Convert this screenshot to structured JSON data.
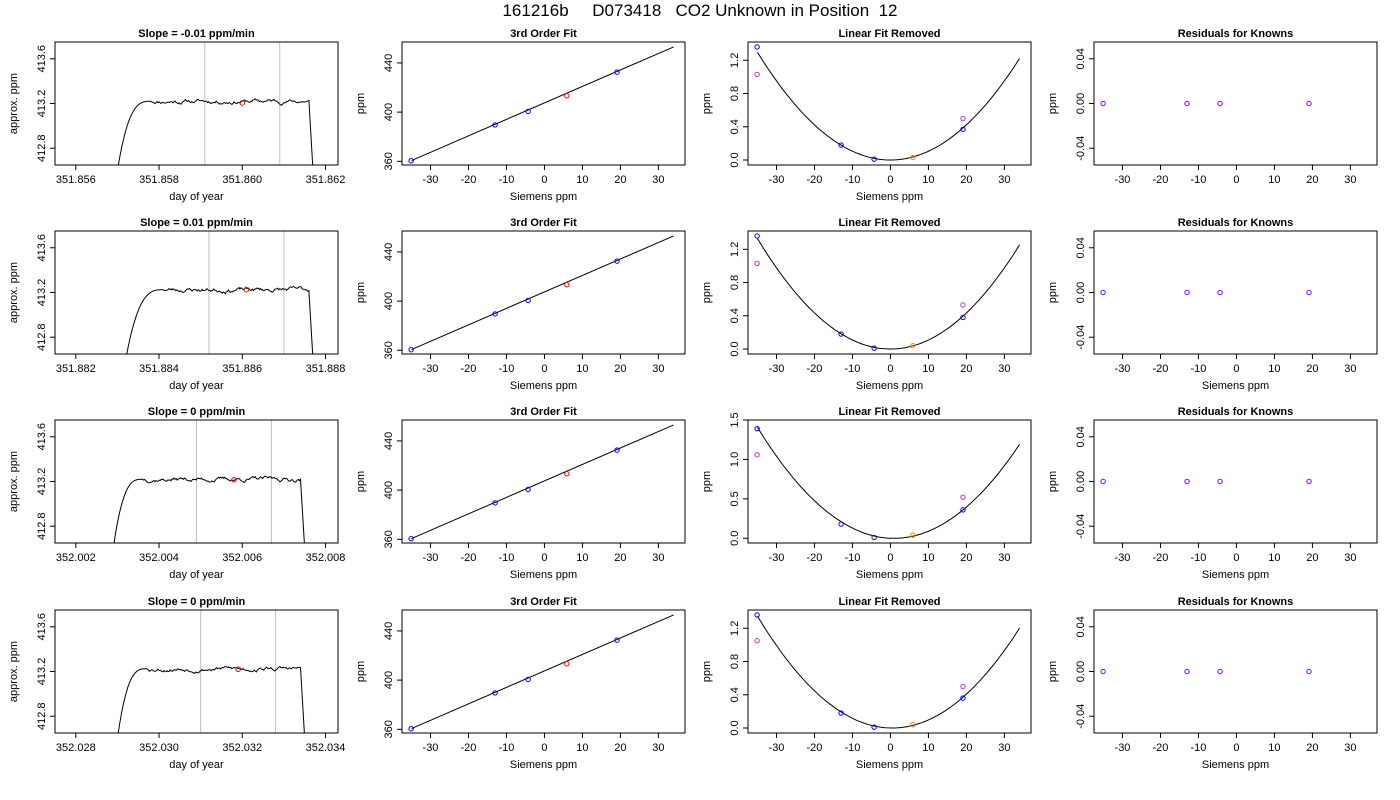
{
  "title": "161216b     D073418   CO2 Unknown in Position  12",
  "colors": {
    "known_point": "#0000ff",
    "unknown_point": "#ff0000",
    "linear_unknown_point": "#ff8000",
    "offset_point": "#cc33cc",
    "residual_point": "#7f00ff",
    "vline": "#bfbfbf",
    "line": "#000000"
  },
  "chart_data": [
    {
      "row": 0,
      "type": "line",
      "title": "Slope =  -0.01  ppm/min",
      "xlabel": "day of year",
      "ylabel": "approx. ppm",
      "xlim": [
        351.8555,
        351.8623
      ],
      "ylim": [
        412.65,
        413.75
      ],
      "xticks": [
        351.856,
        351.858,
        351.86,
        351.862
      ],
      "xtick_labels": [
        "351.856",
        "351.858",
        "351.860",
        "351.862"
      ],
      "yticks": [
        412.8,
        413.2,
        413.6
      ],
      "ytick_labels": [
        "412.8",
        "413.2",
        "413.6"
      ],
      "trace": {
        "x_start": 351.857,
        "x_plateau": 351.8578,
        "x_end": 351.8616,
        "x_drop": 351.8617,
        "level": 413.22,
        "base": 412.6,
        "noise": 0.025,
        "seed": 11
      },
      "vlines": [
        351.8591,
        351.8609
      ],
      "marker": {
        "x": 351.86,
        "y": 413.205
      }
    },
    {
      "row": 0,
      "type": "line",
      "title": "3rd Order Fit",
      "xlabel": "Siemens ppm",
      "ylabel": "ppm",
      "xlim": [
        -37.5,
        37
      ],
      "ylim": [
        357,
        457
      ],
      "xticks": [
        -30,
        -20,
        -10,
        0,
        10,
        20,
        30
      ],
      "xtick_labels": [
        "-30",
        "-20",
        "-10",
        "0",
        "10",
        "20",
        "30"
      ],
      "yticks": [
        360,
        400,
        440
      ],
      "ytick_labels": [
        "360",
        "400",
        "440"
      ],
      "line": {
        "x": [
          -35,
          34
        ],
        "y": [
          360.6,
          453.0
        ]
      },
      "knowns": {
        "x": [
          -35.1,
          -13.0,
          -4.3,
          19.1
        ],
        "y": [
          360.5,
          389.6,
          400.5,
          432.5
        ]
      },
      "unknown": {
        "x": 5.9,
        "y": 413.3
      }
    },
    {
      "row": 0,
      "type": "line",
      "title": "Linear Fit Removed",
      "xlabel": "Siemens ppm",
      "ylabel": "ppm",
      "xlim": [
        -37.5,
        37
      ],
      "ylim": [
        -0.06,
        1.42
      ],
      "xticks": [
        -30,
        -20,
        -10,
        0,
        10,
        20,
        30
      ],
      "xtick_labels": [
        "-30",
        "-20",
        "-10",
        "0",
        "10",
        "20",
        "30"
      ],
      "yticks": [
        0.0,
        0.4,
        0.8,
        1.2
      ],
      "ytick_labels": [
        "0.0",
        "0.4",
        "0.8",
        "1.2"
      ],
      "curve": {
        "a": 0.001058,
        "b": 0.0,
        "c": 0.0,
        "x_range": [
          -35,
          34
        ]
      },
      "knowns": {
        "x": [
          -35.1,
          -13.0,
          -4.3,
          19.1
        ],
        "y": [
          1.36,
          0.18,
          0.01,
          0.37
        ]
      },
      "offsets": {
        "x": [
          -35.1,
          19.1
        ],
        "y": [
          1.03,
          0.5
        ]
      },
      "unknown": {
        "x": 5.9,
        "y": 0.03
      }
    },
    {
      "row": 0,
      "type": "scatter",
      "title": "Residuals for Knowns",
      "xlabel": "",
      "ylabel": "ppm",
      "xlim": [
        -37.5,
        37
      ],
      "ylim": [
        -0.055,
        0.055
      ],
      "xticks": [
        -30,
        -20,
        -10,
        0,
        10,
        20,
        30
      ],
      "xtick_labels": [
        "-30",
        "-20",
        "-10",
        "0",
        "10",
        "20",
        "30"
      ],
      "yticks": [
        -0.04,
        0.0,
        0.04
      ],
      "ytick_labels": [
        "-0.04",
        "0.00",
        "0.04"
      ],
      "points": {
        "x": [
          -35.1,
          -13.0,
          -4.3,
          19.1
        ],
        "y": [
          0,
          0,
          0,
          0
        ]
      }
    },
    {
      "row": 1,
      "type": "line",
      "title": "Slope =  0.01  ppm/min",
      "xlabel": "day of year",
      "ylabel": "approx. ppm",
      "xlim": [
        351.8815,
        351.8883
      ],
      "ylim": [
        412.65,
        413.75
      ],
      "xticks": [
        351.882,
        351.884,
        351.886,
        351.888
      ],
      "xtick_labels": [
        "351.882",
        "351.884",
        "351.886",
        "351.888"
      ],
      "yticks": [
        412.8,
        413.2,
        413.6
      ],
      "ytick_labels": [
        "412.8",
        "413.2",
        "413.6"
      ],
      "trace": {
        "x_start": 351.8832,
        "x_plateau": 351.8841,
        "x_end": 351.8876,
        "x_drop": 351.8877,
        "level": 413.225,
        "base": 412.6,
        "noise": 0.025,
        "seed": 23
      },
      "vlines": [
        351.8852,
        351.887
      ],
      "marker": {
        "x": 351.8861,
        "y": 413.225
      }
    },
    {
      "row": 1,
      "type": "line",
      "title": "3rd Order Fit",
      "xlabel": "Siemens ppm",
      "ylabel": "ppm",
      "xlim": [
        -37.5,
        37
      ],
      "ylim": [
        357,
        457
      ],
      "xticks": [
        -30,
        -20,
        -10,
        0,
        10,
        20,
        30
      ],
      "xtick_labels": [
        "-30",
        "-20",
        "-10",
        "0",
        "10",
        "20",
        "30"
      ],
      "yticks": [
        360,
        400,
        440
      ],
      "ytick_labels": [
        "360",
        "400",
        "440"
      ],
      "line": {
        "x": [
          -35,
          34
        ],
        "y": [
          360.6,
          453.0
        ]
      },
      "knowns": {
        "x": [
          -35.1,
          -13.0,
          -4.3,
          19.1
        ],
        "y": [
          360.5,
          389.6,
          400.5,
          432.5
        ]
      },
      "unknown": {
        "x": 5.9,
        "y": 413.3
      }
    },
    {
      "row": 1,
      "type": "line",
      "title": "Linear Fit Removed",
      "xlabel": "Siemens ppm",
      "ylabel": "ppm",
      "xlim": [
        -37.5,
        37
      ],
      "ylim": [
        -0.06,
        1.42
      ],
      "xticks": [
        -30,
        -20,
        -10,
        0,
        10,
        20,
        30
      ],
      "xtick_labels": [
        "-30",
        "-20",
        "-10",
        "0",
        "10",
        "20",
        "30"
      ],
      "yticks": [
        0.0,
        0.4,
        0.8,
        1.2
      ],
      "ytick_labels": [
        "0.0",
        "0.4",
        "0.8",
        "1.2"
      ],
      "curve": {
        "a": 0.001085,
        "b": 0.0,
        "c": 0.0,
        "x_range": [
          -35,
          34
        ]
      },
      "knowns": {
        "x": [
          -35.1,
          -13.0,
          -4.3,
          19.1
        ],
        "y": [
          1.36,
          0.18,
          0.01,
          0.38
        ]
      },
      "offsets": {
        "x": [
          -35.1,
          19.1
        ],
        "y": [
          1.03,
          0.53
        ]
      },
      "unknown": {
        "x": 5.9,
        "y": 0.04
      }
    },
    {
      "row": 1,
      "type": "scatter",
      "title": "Residuals for Knowns",
      "xlabel": "Siemens ppm",
      "ylabel": "ppm",
      "xlim": [
        -37.5,
        37
      ],
      "ylim": [
        -0.055,
        0.055
      ],
      "xticks": [
        -30,
        -20,
        -10,
        0,
        10,
        20,
        30
      ],
      "xtick_labels": [
        "-30",
        "-20",
        "-10",
        "0",
        "10",
        "20",
        "30"
      ],
      "yticks": [
        -0.04,
        0.0,
        0.04
      ],
      "ytick_labels": [
        "-0.04",
        "0.00",
        "0.04"
      ],
      "points": {
        "x": [
          -35.1,
          -13.0,
          -4.3,
          19.1
        ],
        "y": [
          0,
          0,
          0,
          0
        ]
      }
    },
    {
      "row": 2,
      "type": "line",
      "title": "Slope =  0  ppm/min",
      "xlabel": "day of year",
      "ylabel": "approx. ppm",
      "xlim": [
        352.0015,
        352.0083
      ],
      "ylim": [
        412.65,
        413.75
      ],
      "xticks": [
        352.002,
        352.004,
        352.006,
        352.008
      ],
      "xtick_labels": [
        "352.002",
        "352.004",
        "352.006",
        "352.008"
      ],
      "yticks": [
        412.8,
        413.2,
        413.6
      ],
      "ytick_labels": [
        "412.8",
        "413.2",
        "413.6"
      ],
      "trace": {
        "x_start": 352.0029,
        "x_plateau": 352.0036,
        "x_end": 352.0074,
        "x_drop": 352.0075,
        "level": 413.22,
        "base": 412.6,
        "noise": 0.025,
        "seed": 37
      },
      "vlines": [
        352.0049,
        352.0067
      ],
      "marker": {
        "x": 352.0058,
        "y": 413.215
      }
    },
    {
      "row": 2,
      "type": "line",
      "title": "3rd Order Fit",
      "xlabel": "Siemens ppm",
      "ylabel": "ppm",
      "xlim": [
        -37.5,
        37
      ],
      "ylim": [
        357,
        457
      ],
      "xticks": [
        -30,
        -20,
        -10,
        0,
        10,
        20,
        30
      ],
      "xtick_labels": [
        "-30",
        "-20",
        "-10",
        "0",
        "10",
        "20",
        "30"
      ],
      "yticks": [
        360,
        400,
        440
      ],
      "ytick_labels": [
        "360",
        "400",
        "440"
      ],
      "line": {
        "x": [
          -35,
          34
        ],
        "y": [
          360.6,
          453.0
        ]
      },
      "knowns": {
        "x": [
          -35.1,
          -13.0,
          -4.3,
          19.1
        ],
        "y": [
          360.5,
          389.6,
          400.5,
          432.5
        ]
      },
      "unknown": {
        "x": 5.9,
        "y": 413.3
      }
    },
    {
      "row": 2,
      "type": "line",
      "title": "Linear Fit Removed",
      "xlabel": "Siemens ppm",
      "ylabel": "ppm",
      "xlim": [
        -37.5,
        37
      ],
      "ylim": [
        -0.06,
        1.5
      ],
      "xticks": [
        -30,
        -20,
        -10,
        0,
        10,
        20,
        30
      ],
      "xtick_labels": [
        "-30",
        "-20",
        "-10",
        "0",
        "10",
        "20",
        "30"
      ],
      "yticks": [
        0.0,
        0.5,
        1.0,
        1.5
      ],
      "ytick_labels": [
        "0.0",
        "0.5",
        "1.0",
        "1.5"
      ],
      "curve": {
        "a": 0.00109,
        "b": -0.002,
        "c": 0.0,
        "x_range": [
          -35,
          34
        ]
      },
      "knowns": {
        "x": [
          -35.1,
          -13.0,
          -4.3,
          19.1
        ],
        "y": [
          1.39,
          0.18,
          0.01,
          0.36
        ]
      },
      "offsets": {
        "x": [
          -35.1,
          19.1
        ],
        "y": [
          1.06,
          0.52
        ]
      },
      "unknown": {
        "x": 5.9,
        "y": 0.04
      }
    },
    {
      "row": 2,
      "type": "scatter",
      "title": "Residuals for Knowns",
      "xlabel": "Siemens ppm",
      "ylabel": "ppm",
      "xlim": [
        -37.5,
        37
      ],
      "ylim": [
        -0.055,
        0.055
      ],
      "xticks": [
        -30,
        -20,
        -10,
        0,
        10,
        20,
        30
      ],
      "xtick_labels": [
        "-30",
        "-20",
        "-10",
        "0",
        "10",
        "20",
        "30"
      ],
      "yticks": [
        -0.04,
        0.0,
        0.04
      ],
      "ytick_labels": [
        "-0.04",
        "0.00",
        "0.04"
      ],
      "points": {
        "x": [
          -35.1,
          -13.0,
          -4.3,
          19.1
        ],
        "y": [
          0,
          0,
          0,
          0
        ]
      }
    },
    {
      "row": 3,
      "type": "line",
      "title": "Slope =  0  ppm/min",
      "xlabel": "day of year",
      "ylabel": "approx. ppm",
      "xlim": [
        352.0275,
        352.0343
      ],
      "ylim": [
        412.65,
        413.75
      ],
      "xticks": [
        352.028,
        352.03,
        352.032,
        352.034
      ],
      "xtick_labels": [
        "352.028",
        "352.030",
        "352.032",
        "352.034"
      ],
      "yticks": [
        412.8,
        413.2,
        413.6
      ],
      "ytick_labels": [
        "412.8",
        "413.2",
        "413.6"
      ],
      "trace": {
        "x_start": 352.029,
        "x_plateau": 352.0297,
        "x_end": 352.0334,
        "x_drop": 352.0335,
        "level": 413.225,
        "base": 412.6,
        "noise": 0.025,
        "seed": 53
      },
      "vlines": [
        352.031,
        352.0328
      ],
      "marker": {
        "x": 352.0319,
        "y": 413.22
      }
    },
    {
      "row": 3,
      "type": "line",
      "title": "3rd Order Fit",
      "xlabel": "Siemens ppm",
      "ylabel": "ppm",
      "xlim": [
        -37.5,
        37
      ],
      "ylim": [
        357,
        457
      ],
      "xticks": [
        -30,
        -20,
        -10,
        0,
        10,
        20,
        30
      ],
      "xtick_labels": [
        "-30",
        "-20",
        "-10",
        "0",
        "10",
        "20",
        "30"
      ],
      "yticks": [
        360,
        400,
        440
      ],
      "ytick_labels": [
        "360",
        "400",
        "440"
      ],
      "line": {
        "x": [
          -35,
          34
        ],
        "y": [
          360.6,
          453.0
        ]
      },
      "knowns": {
        "x": [
          -35.1,
          -13.0,
          -4.3,
          19.1
        ],
        "y": [
          360.5,
          389.6,
          400.5,
          432.5
        ]
      },
      "unknown": {
        "x": 5.9,
        "y": 413.3
      }
    },
    {
      "row": 3,
      "type": "line",
      "title": "Linear Fit Removed",
      "xlabel": "Siemens ppm",
      "ylabel": "ppm",
      "xlim": [
        -37.5,
        37
      ],
      "ylim": [
        -0.06,
        1.42
      ],
      "xticks": [
        -30,
        -20,
        -10,
        0,
        10,
        20,
        30
      ],
      "xtick_labels": [
        "-30",
        "-20",
        "-10",
        "0",
        "10",
        "20",
        "30"
      ],
      "yticks": [
        0.0,
        0.4,
        0.8,
        1.2
      ],
      "ytick_labels": [
        "0.0",
        "0.4",
        "0.8",
        "1.2"
      ],
      "curve": {
        "a": 0.00107,
        "b": -0.001,
        "c": 0.0,
        "x_range": [
          -35,
          34
        ]
      },
      "knowns": {
        "x": [
          -35.1,
          -13.0,
          -4.3,
          19.1
        ],
        "y": [
          1.36,
          0.18,
          0.01,
          0.36
        ]
      },
      "offsets": {
        "x": [
          -35.1,
          19.1
        ],
        "y": [
          1.05,
          0.5
        ]
      },
      "unknown": {
        "x": 5.9,
        "y": 0.04
      }
    },
    {
      "row": 3,
      "type": "scatter",
      "title": "Residuals for Knowns",
      "xlabel": "Siemens ppm",
      "ylabel": "ppm",
      "xlim": [
        -37.5,
        37
      ],
      "ylim": [
        -0.055,
        0.055
      ],
      "xticks": [
        -30,
        -20,
        -10,
        0,
        10,
        20,
        30
      ],
      "xtick_labels": [
        "-30",
        "-20",
        "-10",
        "0",
        "10",
        "20",
        "30"
      ],
      "yticks": [
        -0.04,
        0.0,
        0.04
      ],
      "ytick_labels": [
        "-0.04",
        "0.00",
        "0.04"
      ],
      "points": {
        "x": [
          -35.1,
          -13.0,
          -4.3,
          19.1
        ],
        "y": [
          0,
          0,
          0,
          0
        ]
      }
    }
  ]
}
